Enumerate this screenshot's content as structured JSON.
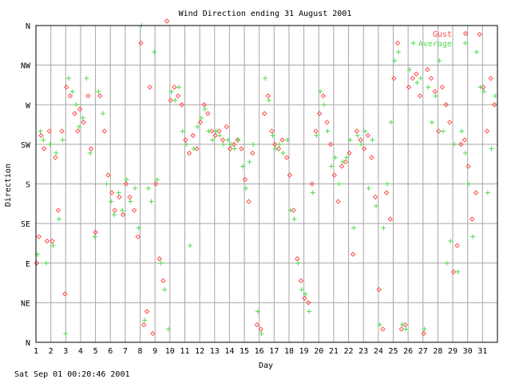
{
  "chart_data": {
    "type": "scatter",
    "title": "Wind Direction ending 31 August 2001",
    "xlabel": "Day",
    "ylabel": "Direction",
    "xlim": [
      1,
      32
    ],
    "ylim": [
      0,
      360
    ],
    "x_ticks": [
      "1",
      "2",
      "3",
      "4",
      "5",
      "6",
      "7",
      "8",
      "9",
      "10",
      "11",
      "12",
      "13",
      "14",
      "15",
      "16",
      "17",
      "18",
      "19",
      "20",
      "21",
      "22",
      "23",
      "24",
      "25",
      "26",
      "27",
      "28",
      "29",
      "30",
      "31"
    ],
    "y_ticks": [
      {
        "label": "N",
        "value": 0
      },
      {
        "label": "NE",
        "value": 45
      },
      {
        "label": "E",
        "value": 90
      },
      {
        "label": "SE",
        "value": 135
      },
      {
        "label": "S",
        "value": 180
      },
      {
        "label": "SW",
        "value": 225
      },
      {
        "label": "W",
        "value": 270
      },
      {
        "label": "NW",
        "value": 315
      },
      {
        "label": "N",
        "value": 360
      }
    ],
    "grid": true,
    "legend_position": "top-right",
    "series": [
      {
        "name": "Gust",
        "color": "#ff4d4d",
        "marker": "diamond",
        "values": [
          [
            1.05,
            90
          ],
          [
            1.2,
            120
          ],
          [
            1.35,
            235
          ],
          [
            1.55,
            220
          ],
          [
            1.75,
            115
          ],
          [
            1.9,
            240
          ],
          [
            2.1,
            115
          ],
          [
            2.3,
            210
          ],
          [
            2.5,
            150
          ],
          [
            2.75,
            240
          ],
          [
            2.95,
            55
          ],
          [
            3.05,
            290
          ],
          [
            3.3,
            280
          ],
          [
            3.6,
            260
          ],
          [
            3.8,
            240
          ],
          [
            3.95,
            265
          ],
          [
            4.2,
            250
          ],
          [
            4.5,
            280
          ],
          [
            4.7,
            220
          ],
          [
            5.0,
            125
          ],
          [
            5.3,
            280
          ],
          [
            5.6,
            240
          ],
          [
            5.85,
            190
          ],
          [
            6.1,
            170
          ],
          [
            6.3,
            150
          ],
          [
            6.6,
            165
          ],
          [
            6.85,
            145
          ],
          [
            7.05,
            180
          ],
          [
            7.3,
            165
          ],
          [
            7.6,
            150
          ],
          [
            7.85,
            120
          ],
          [
            8.05,
            340
          ],
          [
            8.25,
            20
          ],
          [
            8.45,
            35
          ],
          [
            8.65,
            290
          ],
          [
            8.85,
            10
          ],
          [
            9.05,
            180
          ],
          [
            9.3,
            95
          ],
          [
            9.55,
            70
          ],
          [
            9.8,
            365
          ],
          [
            10.05,
            275
          ],
          [
            10.3,
            290
          ],
          [
            10.55,
            280
          ],
          [
            10.8,
            270
          ],
          [
            11.05,
            230
          ],
          [
            11.3,
            215
          ],
          [
            11.55,
            235
          ],
          [
            11.8,
            220
          ],
          [
            12.05,
            250
          ],
          [
            12.3,
            270
          ],
          [
            12.55,
            260
          ],
          [
            12.8,
            240
          ],
          [
            13.05,
            235
          ],
          [
            13.3,
            240
          ],
          [
            13.55,
            230
          ],
          [
            13.8,
            245
          ],
          [
            14.05,
            220
          ],
          [
            14.3,
            225
          ],
          [
            14.55,
            230
          ],
          [
            14.8,
            220
          ],
          [
            15.05,
            185
          ],
          [
            15.3,
            160
          ],
          [
            15.55,
            215
          ],
          [
            15.85,
            20
          ],
          [
            16.1,
            15
          ],
          [
            16.35,
            260
          ],
          [
            16.6,
            280
          ],
          [
            16.85,
            240
          ],
          [
            17.05,
            225
          ],
          [
            17.3,
            220
          ],
          [
            17.55,
            230
          ],
          [
            17.85,
            210
          ],
          [
            18.05,
            190
          ],
          [
            18.3,
            150
          ],
          [
            18.55,
            95
          ],
          [
            18.8,
            70
          ],
          [
            19.05,
            50
          ],
          [
            19.3,
            45
          ],
          [
            19.55,
            180
          ],
          [
            19.8,
            240
          ],
          [
            20.05,
            260
          ],
          [
            20.3,
            280
          ],
          [
            20.55,
            250
          ],
          [
            20.8,
            225
          ],
          [
            21.05,
            190
          ],
          [
            21.3,
            160
          ],
          [
            21.55,
            200
          ],
          [
            21.8,
            205
          ],
          [
            22.05,
            215
          ],
          [
            22.3,
            100
          ],
          [
            22.55,
            240
          ],
          [
            22.8,
            230
          ],
          [
            23.05,
            220
          ],
          [
            23.3,
            235
          ],
          [
            23.55,
            210
          ],
          [
            23.8,
            165
          ],
          [
            24.05,
            60
          ],
          [
            24.3,
            15
          ],
          [
            24.55,
            170
          ],
          [
            24.8,
            140
          ],
          [
            25.05,
            300
          ],
          [
            25.3,
            340
          ],
          [
            25.55,
            15
          ],
          [
            25.8,
            20
          ],
          [
            26.05,
            290
          ],
          [
            26.3,
            300
          ],
          [
            26.55,
            305
          ],
          [
            26.8,
            280
          ],
          [
            27.05,
            10
          ],
          [
            27.3,
            310
          ],
          [
            27.55,
            300
          ],
          [
            27.8,
            285
          ],
          [
            28.05,
            240
          ],
          [
            28.3,
            290
          ],
          [
            28.55,
            270
          ],
          [
            28.8,
            250
          ],
          [
            29.05,
            80
          ],
          [
            29.3,
            110
          ],
          [
            29.55,
            225
          ],
          [
            29.8,
            230
          ],
          [
            30.05,
            200
          ],
          [
            30.3,
            140
          ],
          [
            30.55,
            170
          ],
          [
            30.8,
            350
          ],
          [
            31.05,
            290
          ],
          [
            31.3,
            240
          ],
          [
            31.55,
            300
          ],
          [
            31.8,
            270
          ]
        ]
      },
      {
        "name": "Average",
        "color": "#4ddd4d",
        "marker": "plus",
        "values": [
          [
            1.1,
            100
          ],
          [
            1.3,
            240
          ],
          [
            1.5,
            230
          ],
          [
            1.7,
            90
          ],
          [
            1.95,
            225
          ],
          [
            2.15,
            110
          ],
          [
            2.35,
            215
          ],
          [
            2.55,
            140
          ],
          [
            2.8,
            230
          ],
          [
            3.0,
            10
          ],
          [
            3.2,
            300
          ],
          [
            3.45,
            285
          ],
          [
            3.7,
            270
          ],
          [
            3.9,
            245
          ],
          [
            4.15,
            255
          ],
          [
            4.4,
            300
          ],
          [
            4.65,
            215
          ],
          [
            4.95,
            120
          ],
          [
            5.2,
            285
          ],
          [
            5.5,
            260
          ],
          [
            5.75,
            180
          ],
          [
            6.05,
            160
          ],
          [
            6.25,
            145
          ],
          [
            6.55,
            170
          ],
          [
            6.8,
            150
          ],
          [
            7.1,
            185
          ],
          [
            7.35,
            160
          ],
          [
            7.65,
            175
          ],
          [
            7.9,
            130
          ],
          [
            8.1,
            360
          ],
          [
            8.3,
            25
          ],
          [
            8.55,
            175
          ],
          [
            8.75,
            160
          ],
          [
            8.95,
            330
          ],
          [
            9.15,
            185
          ],
          [
            9.4,
            90
          ],
          [
            9.65,
            60
          ],
          [
            9.9,
            15
          ],
          [
            10.1,
            285
          ],
          [
            10.35,
            275
          ],
          [
            10.6,
            290
          ],
          [
            10.85,
            240
          ],
          [
            11.1,
            225
          ],
          [
            11.35,
            110
          ],
          [
            11.6,
            220
          ],
          [
            11.85,
            245
          ],
          [
            12.1,
            255
          ],
          [
            12.35,
            265
          ],
          [
            12.6,
            240
          ],
          [
            12.85,
            230
          ],
          [
            13.1,
            240
          ],
          [
            13.35,
            235
          ],
          [
            13.6,
            225
          ],
          [
            13.9,
            230
          ],
          [
            14.1,
            225
          ],
          [
            14.35,
            220
          ],
          [
            14.6,
            230
          ],
          [
            14.9,
            200
          ],
          [
            15.1,
            175
          ],
          [
            15.35,
            205
          ],
          [
            15.6,
            225
          ],
          [
            15.9,
            35
          ],
          [
            16.15,
            10
          ],
          [
            16.4,
            300
          ],
          [
            16.65,
            275
          ],
          [
            16.9,
            235
          ],
          [
            17.1,
            220
          ],
          [
            17.35,
            225
          ],
          [
            17.6,
            215
          ],
          [
            17.9,
            230
          ],
          [
            18.1,
            150
          ],
          [
            18.35,
            140
          ],
          [
            18.6,
            90
          ],
          [
            18.85,
            60
          ],
          [
            19.1,
            55
          ],
          [
            19.35,
            35
          ],
          [
            19.6,
            170
          ],
          [
            19.85,
            235
          ],
          [
            20.1,
            285
          ],
          [
            20.35,
            270
          ],
          [
            20.6,
            240
          ],
          [
            20.85,
            200
          ],
          [
            21.1,
            210
          ],
          [
            21.35,
            180
          ],
          [
            21.6,
            205
          ],
          [
            21.85,
            210
          ],
          [
            22.1,
            230
          ],
          [
            22.35,
            130
          ],
          [
            22.6,
            235
          ],
          [
            22.85,
            225
          ],
          [
            23.1,
            240
          ],
          [
            23.35,
            175
          ],
          [
            23.6,
            230
          ],
          [
            23.85,
            155
          ],
          [
            24.1,
            20
          ],
          [
            24.35,
            130
          ],
          [
            24.6,
            180
          ],
          [
            24.85,
            250
          ],
          [
            25.1,
            320
          ],
          [
            25.35,
            330
          ],
          [
            25.6,
            20
          ],
          [
            25.85,
            15
          ],
          [
            26.1,
            310
          ],
          [
            26.35,
            340
          ],
          [
            26.6,
            295
          ],
          [
            26.85,
            300
          ],
          [
            27.1,
            15
          ],
          [
            27.35,
            290
          ],
          [
            27.6,
            250
          ],
          [
            27.85,
            280
          ],
          [
            28.1,
            320
          ],
          [
            28.35,
            240
          ],
          [
            28.6,
            90
          ],
          [
            28.85,
            115
          ],
          [
            29.1,
            225
          ],
          [
            29.35,
            80
          ],
          [
            29.6,
            240
          ],
          [
            29.85,
            215
          ],
          [
            30.1,
            180
          ],
          [
            30.35,
            120
          ],
          [
            30.6,
            330
          ],
          [
            30.85,
            290
          ],
          [
            31.1,
            285
          ],
          [
            31.35,
            170
          ],
          [
            31.6,
            220
          ],
          [
            31.85,
            280
          ]
        ]
      }
    ]
  },
  "footer": {
    "timestamp": "Sat Sep 01 00:20:46 2001"
  }
}
